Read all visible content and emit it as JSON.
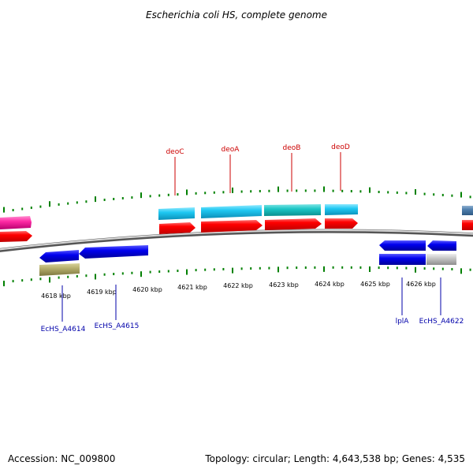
{
  "title": "Escherichia coli HS, complete genome",
  "footer": {
    "accession": "Accession: NC_009800",
    "summary": "Topology: circular; Length: 4,643,538 bp; Genes: 4,535"
  },
  "colors": {
    "forward_label": "#cc0000",
    "reverse_label": "#0000aa",
    "tick": "#008000",
    "backbone": "#888888"
  },
  "scale": {
    "unit": "kbp",
    "labels": [
      "4618 kbp",
      "4619 kbp",
      "4620 kbp",
      "4621 kbp",
      "4622 kbp",
      "4623 kbp",
      "4624 kbp",
      "4625 kbp",
      "4626 kbp"
    ]
  },
  "genes": [
    {
      "name": "deoC",
      "strand": "+"
    },
    {
      "name": "deoA",
      "strand": "+"
    },
    {
      "name": "deoB",
      "strand": "+"
    },
    {
      "name": "deoD",
      "strand": "+"
    },
    {
      "name": "EcHS_A4614",
      "strand": "-"
    },
    {
      "name": "EcHS_A4615",
      "strand": "-"
    },
    {
      "name": "lplA",
      "strand": "-"
    },
    {
      "name": "EcHS_A4622",
      "strand": "-"
    }
  ]
}
